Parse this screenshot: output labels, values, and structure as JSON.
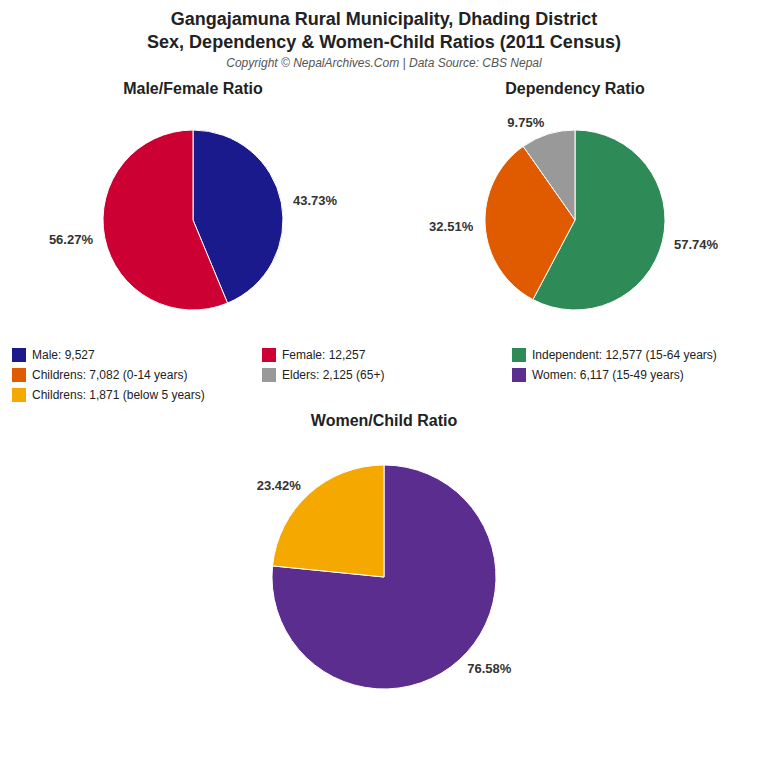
{
  "title": "Gangajamuna Rural Municipality, Dhading District\nSex, Dependency & Women-Child Ratios (2011 Census)",
  "subtitle": "Copyright © NepalArchives.Com | Data Source: CBS Nepal",
  "chart_data": [
    {
      "type": "pie",
      "title": "Male/Female Ratio",
      "categories": [
        "Male: 9,527",
        "Female: 12,257"
      ],
      "values": [
        43.73,
        56.27
      ],
      "value_labels": [
        "43.73%",
        "56.27%"
      ],
      "colors": [
        "#1a1a8c",
        "#cc0033"
      ],
      "data_labels": true
    },
    {
      "type": "pie",
      "title": "Dependency Ratio",
      "categories": [
        "Independent: 12,577 (15-64 years)",
        "Childrens: 7,082 (0-14 years)",
        "Elders: 2,125 (65+)"
      ],
      "values": [
        57.74,
        32.51,
        9.75
      ],
      "value_labels": [
        "57.74%",
        "32.51%",
        "9.75%"
      ],
      "colors": [
        "#2e8b57",
        "#e05a00",
        "#999999"
      ],
      "data_labels": true
    },
    {
      "type": "pie",
      "title": "Women/Child Ratio",
      "categories": [
        "Women: 6,117 (15-49 years)",
        "Childrens: 1,871 (below 5 years)"
      ],
      "values": [
        76.58,
        23.42
      ],
      "value_labels": [
        "76.58%",
        "23.42%"
      ],
      "colors": [
        "#5b2d8e",
        "#f5a800"
      ],
      "data_labels": true
    }
  ]
}
